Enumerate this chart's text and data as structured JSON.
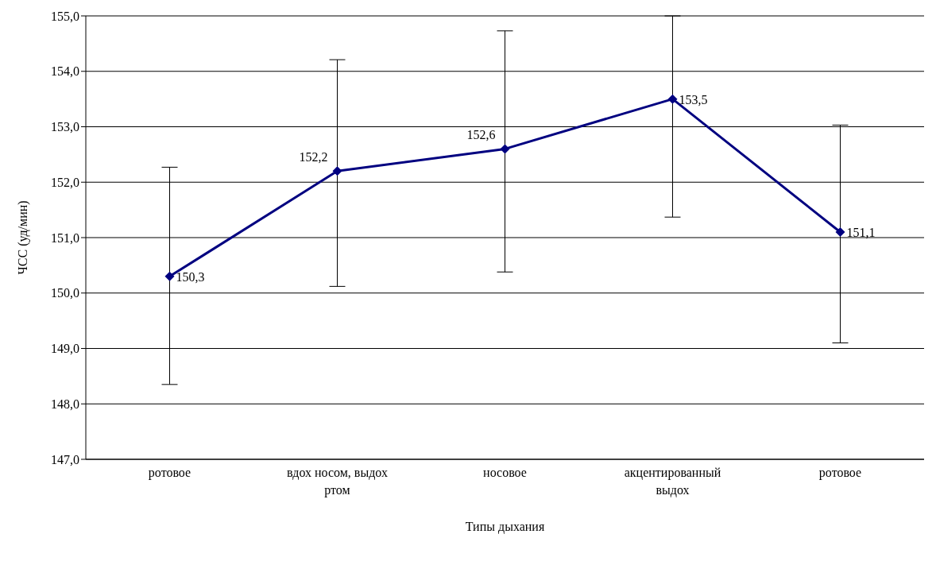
{
  "chart_data": {
    "type": "line",
    "xlabel": "Типы дыхания",
    "ylabel": "ЧСС (уд/мин)",
    "categories": [
      "ротовое",
      "вдох носом, выдох ртом",
      "носовое",
      "акцентированный выдох",
      "ротовое"
    ],
    "series": [
      {
        "color": "#000080",
        "values": [
          150.3,
          152.2,
          152.6,
          153.5,
          151.1
        ],
        "errors": [
          [
            148.35,
            152.27
          ],
          [
            150.12,
            154.21
          ],
          [
            150.38,
            154.73
          ],
          [
            151.37,
            155.0
          ],
          [
            149.1,
            153.03
          ]
        ],
        "value_labels": [
          "150,3",
          "152,2",
          "152,6",
          "153,5",
          "151,1"
        ]
      }
    ],
    "ylim": [
      147,
      155
    ],
    "yticks": [
      {
        "value": 147,
        "label": "147,0"
      },
      {
        "value": 148,
        "label": "148,0"
      },
      {
        "value": 149,
        "label": "149,0"
      },
      {
        "value": 150,
        "label": "150,0"
      },
      {
        "value": 151,
        "label": "151,0"
      },
      {
        "value": 152,
        "label": "152,0"
      },
      {
        "value": 153,
        "label": "153,0"
      },
      {
        "value": 154,
        "label": "154,0"
      },
      {
        "value": 155,
        "label": "155,0"
      }
    ],
    "grid": "y",
    "marker": "diamond",
    "line_style": "solid",
    "legend": false
  }
}
